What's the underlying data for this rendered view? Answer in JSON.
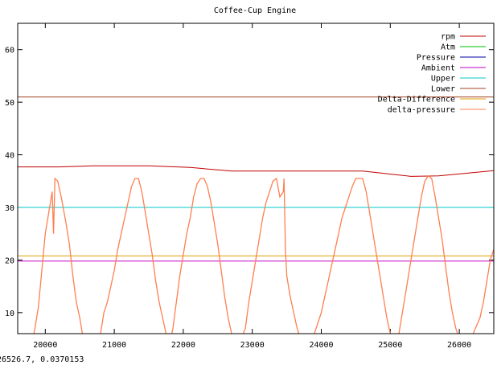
{
  "status_readout": "26526.7, 0.0370153",
  "chart_data": {
    "type": "line",
    "title": "Coffee-Cup Engine",
    "xlabel": "",
    "ylabel": "",
    "xlim": [
      19600,
      26500
    ],
    "ylim": [
      6,
      65
    ],
    "xticks": [
      20000,
      21000,
      22000,
      23000,
      24000,
      25000,
      26000
    ],
    "yticks": [
      10,
      20,
      30,
      40,
      50,
      60
    ],
    "grid": false,
    "legend_position": "top-right",
    "series": [
      {
        "name": "rpm",
        "color": "#c00000",
        "points": [
          [
            19600,
            37.7
          ],
          [
            20200,
            37.7
          ],
          [
            20700,
            37.9
          ],
          [
            21500,
            37.9
          ],
          [
            22100,
            37.6
          ],
          [
            22700,
            36.9
          ],
          [
            24600,
            36.9
          ],
          [
            25300,
            35.9
          ],
          [
            25700,
            36.0
          ],
          [
            26500,
            37.0
          ]
        ]
      },
      {
        "name": "Atm",
        "color": "#00c000",
        "points": []
      },
      {
        "name": "Pressure",
        "color": "#0000a0",
        "points": []
      },
      {
        "name": "Ambient",
        "color": "#c000c0",
        "points": [
          [
            19600,
            19.8
          ],
          [
            26500,
            19.8
          ]
        ]
      },
      {
        "name": "Upper",
        "color": "#00c8c8",
        "points": [
          [
            19600,
            30.0
          ],
          [
            26500,
            30.0
          ]
        ]
      },
      {
        "name": "Lower",
        "color": "#a04020",
        "points": [
          [
            19600,
            51.0
          ],
          [
            26500,
            51.0
          ]
        ]
      },
      {
        "name": "Delta-Difference",
        "color": "#e0a000",
        "points": [
          [
            19600,
            20.8
          ],
          [
            26500,
            20.8
          ]
        ]
      },
      {
        "name": "delta-pressure",
        "color": "#ff7f50",
        "points": [
          [
            19650,
            6.0
          ],
          [
            19790,
            3.0
          ],
          [
            19850,
            7.0
          ],
          [
            19900,
            11.0
          ],
          [
            19950,
            18.0
          ],
          [
            20000,
            25.0
          ],
          [
            20050,
            29.0
          ],
          [
            20100,
            33.0
          ],
          [
            20120,
            25.0
          ],
          [
            20140,
            35.5
          ],
          [
            20180,
            35.0
          ],
          [
            20230,
            32.0
          ],
          [
            20300,
            27.0
          ],
          [
            20350,
            23.0
          ],
          [
            20400,
            17.0
          ],
          [
            20450,
            12.0
          ],
          [
            20500,
            9.0
          ],
          [
            20550,
            5.0
          ],
          [
            20600,
            3.0
          ],
          [
            20700,
            4.0
          ],
          [
            20800,
            6.0
          ],
          [
            20850,
            10.0
          ],
          [
            20900,
            12.0
          ],
          [
            20950,
            15.0
          ],
          [
            21000,
            18.0
          ],
          [
            21050,
            22.0
          ],
          [
            21100,
            25.0
          ],
          [
            21150,
            28.0
          ],
          [
            21200,
            31.0
          ],
          [
            21250,
            34.0
          ],
          [
            21300,
            35.5
          ],
          [
            21350,
            35.5
          ],
          [
            21400,
            33.0
          ],
          [
            21450,
            29.0
          ],
          [
            21500,
            25.0
          ],
          [
            21550,
            21.0
          ],
          [
            21600,
            16.0
          ],
          [
            21650,
            12.0
          ],
          [
            21700,
            9.0
          ],
          [
            21750,
            6.0
          ],
          [
            21800,
            4.0
          ],
          [
            21850,
            7.0
          ],
          [
            21900,
            12.0
          ],
          [
            21950,
            17.0
          ],
          [
            22000,
            21.0
          ],
          [
            22050,
            25.0
          ],
          [
            22100,
            28.0
          ],
          [
            22150,
            32.0
          ],
          [
            22200,
            34.5
          ],
          [
            22250,
            35.5
          ],
          [
            22300,
            35.5
          ],
          [
            22350,
            34.0
          ],
          [
            22400,
            31.0
          ],
          [
            22450,
            27.0
          ],
          [
            22500,
            23.0
          ],
          [
            22550,
            18.0
          ],
          [
            22600,
            13.0
          ],
          [
            22650,
            9.0
          ],
          [
            22700,
            6.0
          ],
          [
            22800,
            4.0
          ],
          [
            22900,
            7.0
          ],
          [
            22950,
            12.0
          ],
          [
            23000,
            16.0
          ],
          [
            23050,
            20.0
          ],
          [
            23100,
            24.0
          ],
          [
            23150,
            28.0
          ],
          [
            23200,
            31.0
          ],
          [
            23250,
            33.0
          ],
          [
            23300,
            35.0
          ],
          [
            23350,
            35.5
          ],
          [
            23400,
            32.0
          ],
          [
            23450,
            33.0
          ],
          [
            23460,
            35.5
          ],
          [
            23480,
            22.0
          ],
          [
            23500,
            17.0
          ],
          [
            23550,
            13.0
          ],
          [
            23600,
            10.0
          ],
          [
            23650,
            7.0
          ],
          [
            23700,
            5.0
          ],
          [
            23800,
            4.0
          ],
          [
            23900,
            6.0
          ],
          [
            24000,
            10.0
          ],
          [
            24050,
            13.0
          ],
          [
            24100,
            16.0
          ],
          [
            24150,
            19.0
          ],
          [
            24200,
            22.0
          ],
          [
            24250,
            25.0
          ],
          [
            24300,
            28.0
          ],
          [
            24350,
            30.0
          ],
          [
            24400,
            32.0
          ],
          [
            24450,
            34.0
          ],
          [
            24500,
            35.5
          ],
          [
            24600,
            35.5
          ],
          [
            24650,
            33.0
          ],
          [
            24700,
            29.0
          ],
          [
            24750,
            25.0
          ],
          [
            24800,
            21.0
          ],
          [
            24850,
            17.0
          ],
          [
            24900,
            13.0
          ],
          [
            24950,
            9.0
          ],
          [
            25000,
            6.0
          ],
          [
            25050,
            4.0
          ],
          [
            25100,
            4.0
          ],
          [
            25150,
            8.0
          ],
          [
            25200,
            12.0
          ],
          [
            25250,
            16.0
          ],
          [
            25300,
            20.0
          ],
          [
            25350,
            24.0
          ],
          [
            25400,
            28.0
          ],
          [
            25450,
            32.0
          ],
          [
            25500,
            35.0
          ],
          [
            25550,
            36.0
          ],
          [
            25600,
            35.5
          ],
          [
            25650,
            32.0
          ],
          [
            25700,
            28.0
          ],
          [
            25750,
            24.0
          ],
          [
            25800,
            19.0
          ],
          [
            25850,
            14.0
          ],
          [
            25900,
            10.0
          ],
          [
            25950,
            7.0
          ],
          [
            26000,
            5.0
          ],
          [
            26100,
            4.0
          ],
          [
            26200,
            6.0
          ],
          [
            26300,
            9.0
          ],
          [
            26350,
            12.0
          ],
          [
            26400,
            16.0
          ],
          [
            26450,
            20.0
          ],
          [
            26500,
            22.0
          ]
        ]
      }
    ]
  }
}
